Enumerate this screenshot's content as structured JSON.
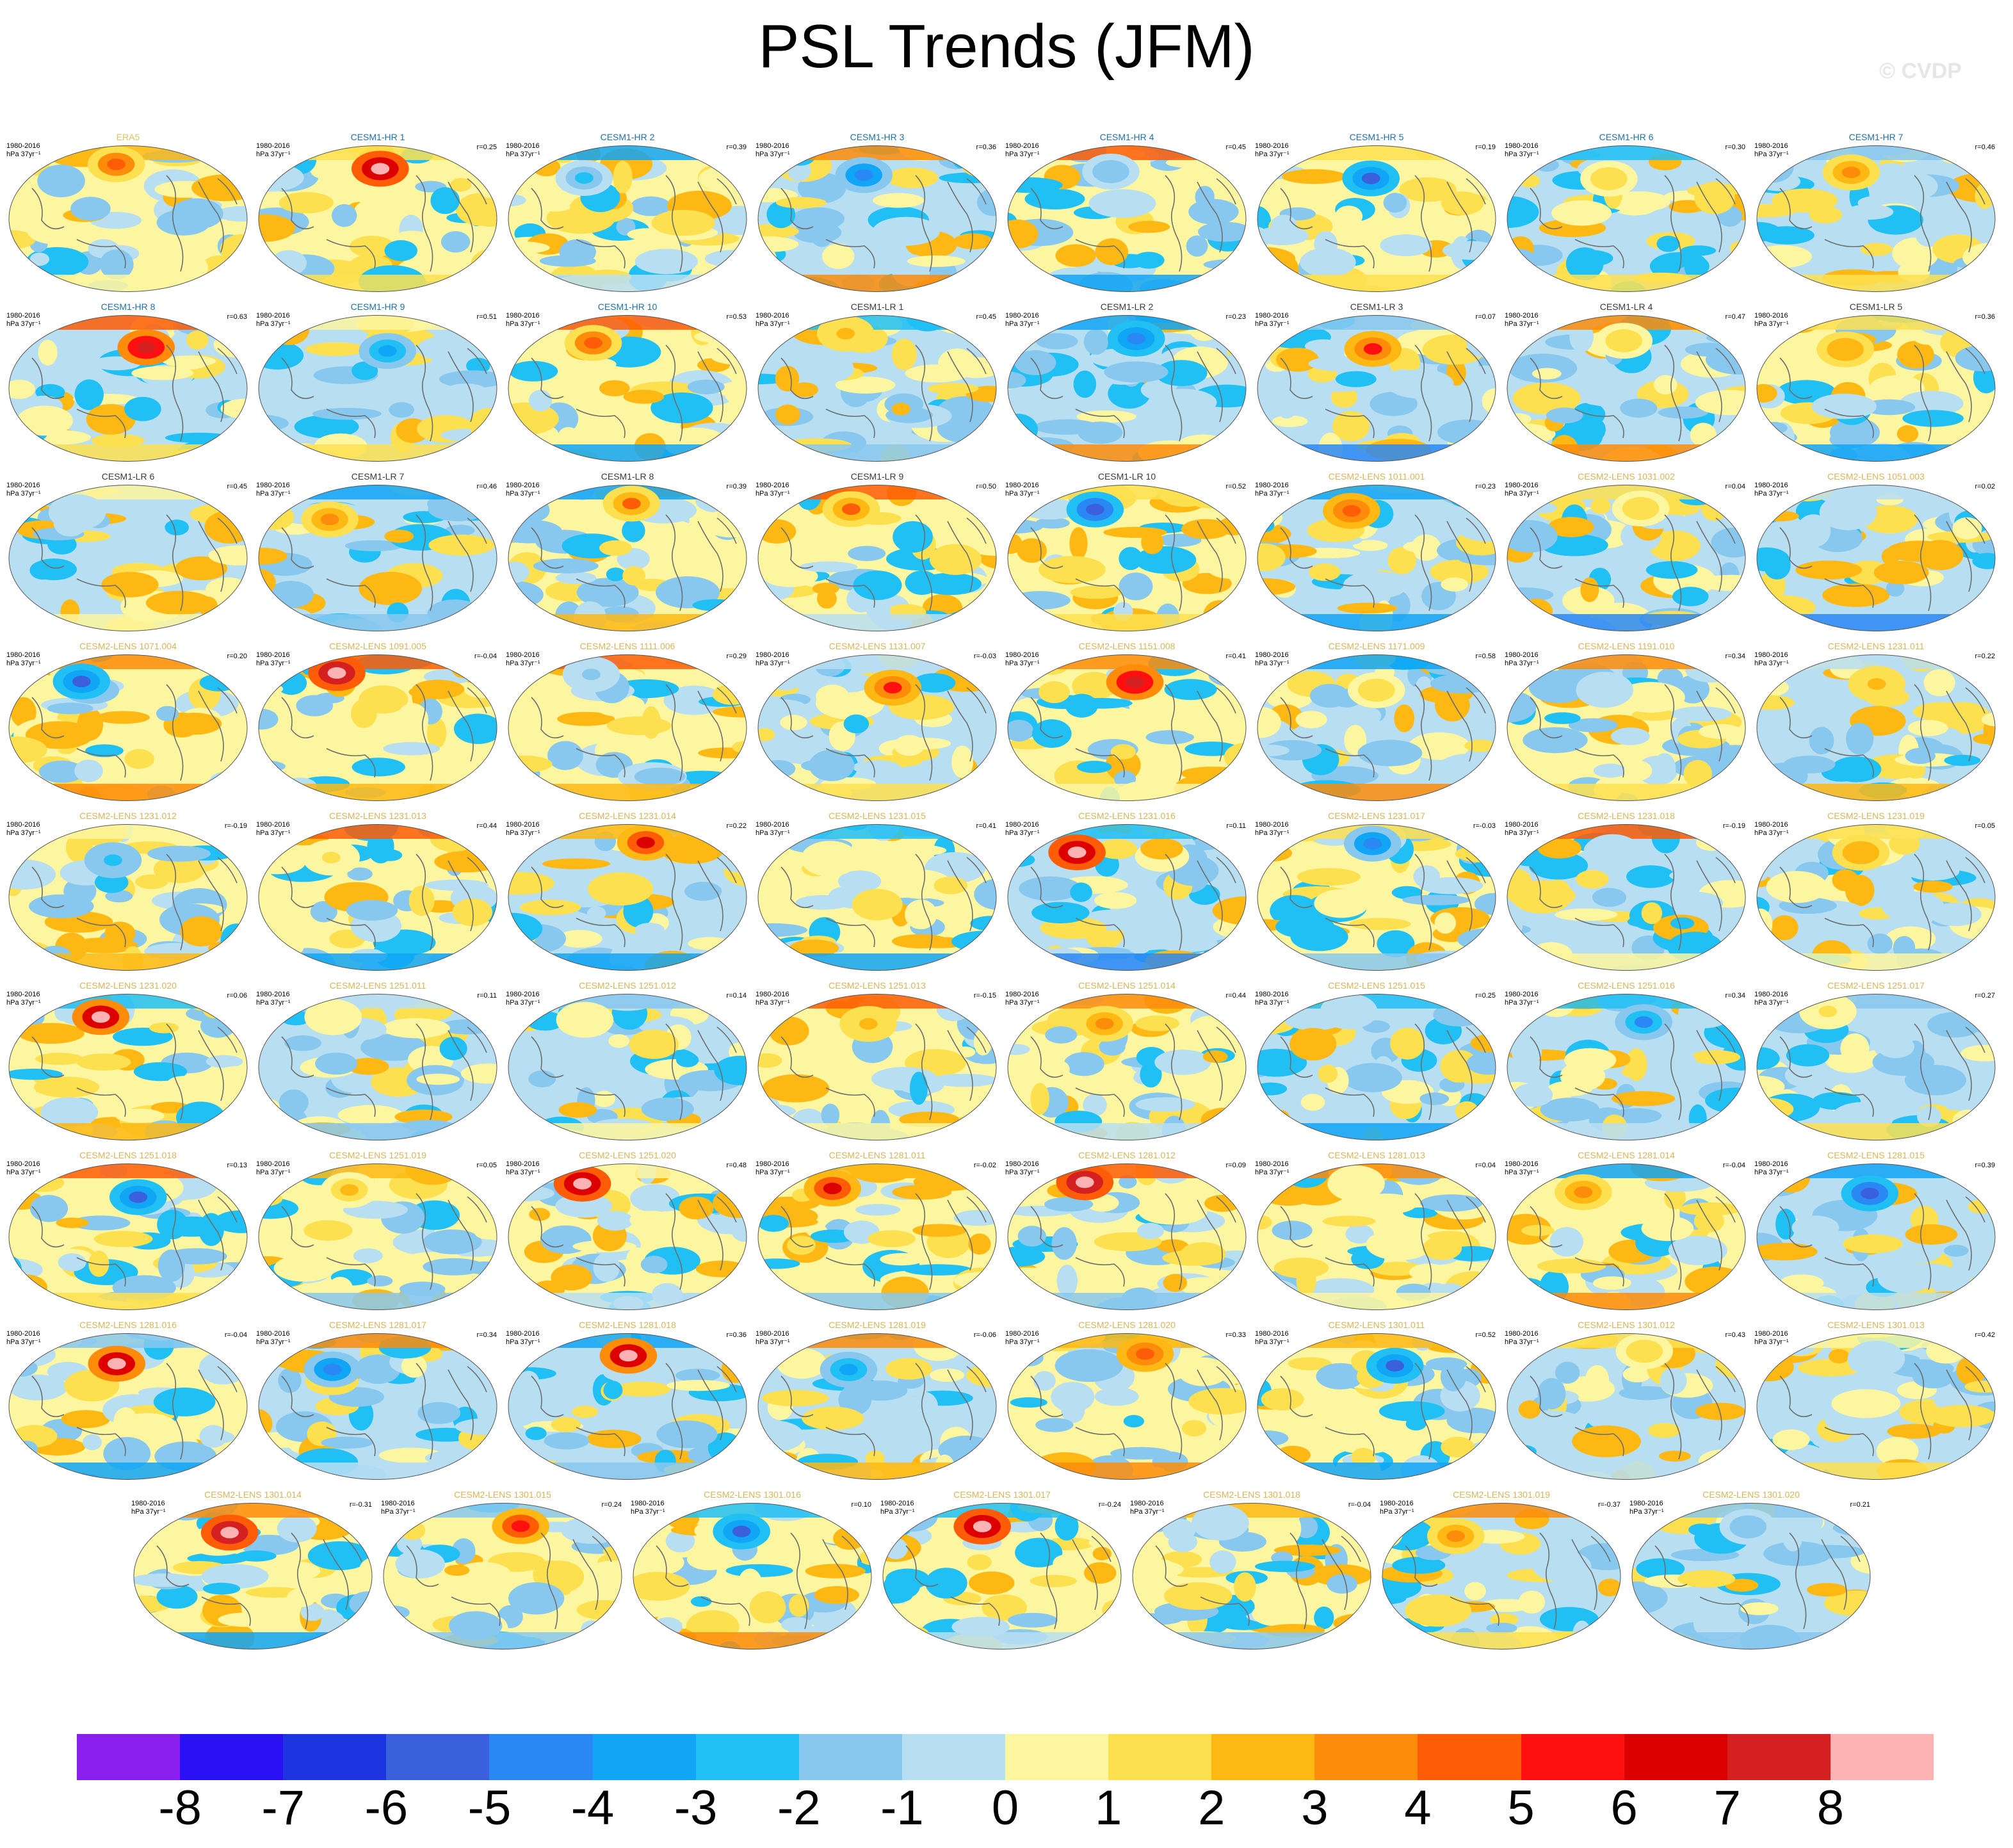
{
  "title": "PSL Trends (JFM)",
  "watermark": "© CVDP",
  "colors": {
    "hr_title": "#1f6fa8",
    "lr_title": "#3a3a3a",
    "lens_title": "#d8b45a",
    "obs_title": "#e0c060"
  },
  "chart_data": {
    "type": "heatmap",
    "title": "PSL Trends (JFM)",
    "projection": "Robinson world map",
    "period": "1980-2016",
    "units": "hPa 37yr⁻¹",
    "colorbar": {
      "levels": [
        -8,
        -7,
        -6,
        -5,
        -4,
        -3,
        -2,
        -1,
        0,
        1,
        2,
        3,
        4,
        5,
        6,
        7,
        8
      ],
      "tick_labels": [
        "-8",
        "-7",
        "-6",
        "-5",
        "-4",
        "-3",
        "-2",
        "-1",
        "0",
        "1",
        "2",
        "3",
        "4",
        "5",
        "6",
        "7",
        "8"
      ],
      "colors": [
        "#8a20f0",
        "#2a10f5",
        "#1d35e0",
        "#3a60dd",
        "#2a88f5",
        "#10a5f5",
        "#20c0f5",
        "#88c8ee",
        "#b8def2",
        "#fdf6a0",
        "#fde050",
        "#fdb814",
        "#fd8c0a",
        "#fe5c06",
        "#fe1010",
        "#dd0000",
        "#d42020",
        "#fdb3b3"
      ]
    },
    "panels": [
      {
        "name": "ERA5",
        "group": "obs",
        "period": "1980-2016",
        "units": "hPa 37yr⁻¹",
        "r": ""
      },
      {
        "name": "CESM1-HR 1",
        "group": "hr",
        "period": "1980-2016",
        "units": "hPa 37yr⁻¹",
        "r": "r=0.25"
      },
      {
        "name": "CESM1-HR 2",
        "group": "hr",
        "period": "1980-2016",
        "units": "hPa 37yr⁻¹",
        "r": "r=0.39"
      },
      {
        "name": "CESM1-HR 3",
        "group": "hr",
        "period": "1980-2016",
        "units": "hPa 37yr⁻¹",
        "r": "r=0.36"
      },
      {
        "name": "CESM1-HR 4",
        "group": "hr",
        "period": "1980-2016",
        "units": "hPa 37yr⁻¹",
        "r": "r=0.45"
      },
      {
        "name": "CESM1-HR 5",
        "group": "hr",
        "period": "1980-2016",
        "units": "hPa 37yr⁻¹",
        "r": "r=0.19"
      },
      {
        "name": "CESM1-HR 6",
        "group": "hr",
        "period": "1980-2016",
        "units": "hPa 37yr⁻¹",
        "r": "r=0.30"
      },
      {
        "name": "CESM1-HR 7",
        "group": "hr",
        "period": "1980-2016",
        "units": "hPa 37yr⁻¹",
        "r": "r=0.46"
      },
      {
        "name": "CESM1-HR 8",
        "group": "hr",
        "period": "1980-2016",
        "units": "hPa 37yr⁻¹",
        "r": "r=0.63"
      },
      {
        "name": "CESM1-HR 9",
        "group": "hr",
        "period": "1980-2016",
        "units": "hPa 37yr⁻¹",
        "r": "r=0.51"
      },
      {
        "name": "CESM1-HR 10",
        "group": "hr",
        "period": "1980-2016",
        "units": "hPa 37yr⁻¹",
        "r": "r=0.53"
      },
      {
        "name": "CESM1-LR 1",
        "group": "lr",
        "period": "1980-2016",
        "units": "hPa 37yr⁻¹",
        "r": "r=0.45"
      },
      {
        "name": "CESM1-LR 2",
        "group": "lr",
        "period": "1980-2016",
        "units": "hPa 37yr⁻¹",
        "r": "r=0.23"
      },
      {
        "name": "CESM1-LR 3",
        "group": "lr",
        "period": "1980-2016",
        "units": "hPa 37yr⁻¹",
        "r": "r=0.07"
      },
      {
        "name": "CESM1-LR 4",
        "group": "lr",
        "period": "1980-2016",
        "units": "hPa 37yr⁻¹",
        "r": "r=0.47"
      },
      {
        "name": "CESM1-LR 5",
        "group": "lr",
        "period": "1980-2016",
        "units": "hPa 37yr⁻¹",
        "r": "r=0.36"
      },
      {
        "name": "CESM1-LR 6",
        "group": "lr",
        "period": "1980-2016",
        "units": "hPa 37yr⁻¹",
        "r": "r=0.45"
      },
      {
        "name": "CESM1-LR 7",
        "group": "lr",
        "period": "1980-2016",
        "units": "hPa 37yr⁻¹",
        "r": "r=0.46"
      },
      {
        "name": "CESM1-LR 8",
        "group": "lr",
        "period": "1980-2016",
        "units": "hPa 37yr⁻¹",
        "r": "r=0.39"
      },
      {
        "name": "CESM1-LR 9",
        "group": "lr",
        "period": "1980-2016",
        "units": "hPa 37yr⁻¹",
        "r": "r=0.50"
      },
      {
        "name": "CESM1-LR 10",
        "group": "lr",
        "period": "1980-2016",
        "units": "hPa 37yr⁻¹",
        "r": "r=0.52"
      },
      {
        "name": "CESM2-LENS 1011.001",
        "group": "lens",
        "period": "1980-2016",
        "units": "hPa 37yr⁻¹",
        "r": "r=0.23"
      },
      {
        "name": "CESM2-LENS 1031.002",
        "group": "lens",
        "period": "1980-2016",
        "units": "hPa 37yr⁻¹",
        "r": "r=0.04"
      },
      {
        "name": "CESM2-LENS 1051.003",
        "group": "lens",
        "period": "1980-2016",
        "units": "hPa 37yr⁻¹",
        "r": "r=0.02"
      },
      {
        "name": "CESM2-LENS 1071.004",
        "group": "lens",
        "period": "1980-2016",
        "units": "hPa 37yr⁻¹",
        "r": "r=0.20"
      },
      {
        "name": "CESM2-LENS 1091.005",
        "group": "lens",
        "period": "1980-2016",
        "units": "hPa 37yr⁻¹",
        "r": "r=-0.04"
      },
      {
        "name": "CESM2-LENS 1111.006",
        "group": "lens",
        "period": "1980-2016",
        "units": "hPa 37yr⁻¹",
        "r": "r=0.29"
      },
      {
        "name": "CESM2-LENS 1131.007",
        "group": "lens",
        "period": "1980-2016",
        "units": "hPa 37yr⁻¹",
        "r": "r=-0.03"
      },
      {
        "name": "CESM2-LENS 1151.008",
        "group": "lens",
        "period": "1980-2016",
        "units": "hPa 37yr⁻¹",
        "r": "r=0.41"
      },
      {
        "name": "CESM2-LENS 1171.009",
        "group": "lens",
        "period": "1980-2016",
        "units": "hPa 37yr⁻¹",
        "r": "r=0.58"
      },
      {
        "name": "CESM2-LENS 1191.010",
        "group": "lens",
        "period": "1980-2016",
        "units": "hPa 37yr⁻¹",
        "r": "r=0.34"
      },
      {
        "name": "CESM2-LENS 1231.011",
        "group": "lens",
        "period": "1980-2016",
        "units": "hPa 37yr⁻¹",
        "r": "r=0.22"
      },
      {
        "name": "CESM2-LENS 1231.012",
        "group": "lens",
        "period": "1980-2016",
        "units": "hPa 37yr⁻¹",
        "r": "r=-0.19"
      },
      {
        "name": "CESM2-LENS 1231.013",
        "group": "lens",
        "period": "1980-2016",
        "units": "hPa 37yr⁻¹",
        "r": "r=0.44"
      },
      {
        "name": "CESM2-LENS 1231.014",
        "group": "lens",
        "period": "1980-2016",
        "units": "hPa 37yr⁻¹",
        "r": "r=0.22"
      },
      {
        "name": "CESM2-LENS 1231.015",
        "group": "lens",
        "period": "1980-2016",
        "units": "hPa 37yr⁻¹",
        "r": "r=0.41"
      },
      {
        "name": "CESM2-LENS 1231.016",
        "group": "lens",
        "period": "1980-2016",
        "units": "hPa 37yr⁻¹",
        "r": "r=0.11"
      },
      {
        "name": "CESM2-LENS 1231.017",
        "group": "lens",
        "period": "1980-2016",
        "units": "hPa 37yr⁻¹",
        "r": "r=-0.03"
      },
      {
        "name": "CESM2-LENS 1231.018",
        "group": "lens",
        "period": "1980-2016",
        "units": "hPa 37yr⁻¹",
        "r": "r=-0.19"
      },
      {
        "name": "CESM2-LENS 1231.019",
        "group": "lens",
        "period": "1980-2016",
        "units": "hPa 37yr⁻¹",
        "r": "r=0.05"
      },
      {
        "name": "CESM2-LENS 1231.020",
        "group": "lens",
        "period": "1980-2016",
        "units": "hPa 37yr⁻¹",
        "r": "r=0.06"
      },
      {
        "name": "CESM2-LENS 1251.011",
        "group": "lens",
        "period": "1980-2016",
        "units": "hPa 37yr⁻¹",
        "r": "r=0.11"
      },
      {
        "name": "CESM2-LENS 1251.012",
        "group": "lens",
        "period": "1980-2016",
        "units": "hPa 37yr⁻¹",
        "r": "r=0.14"
      },
      {
        "name": "CESM2-LENS 1251.013",
        "group": "lens",
        "period": "1980-2016",
        "units": "hPa 37yr⁻¹",
        "r": "r=-0.15"
      },
      {
        "name": "CESM2-LENS 1251.014",
        "group": "lens",
        "period": "1980-2016",
        "units": "hPa 37yr⁻¹",
        "r": "r=0.44"
      },
      {
        "name": "CESM2-LENS 1251.015",
        "group": "lens",
        "period": "1980-2016",
        "units": "hPa 37yr⁻¹",
        "r": "r=0.25"
      },
      {
        "name": "CESM2-LENS 1251.016",
        "group": "lens",
        "period": "1980-2016",
        "units": "hPa 37yr⁻¹",
        "r": "r=0.34"
      },
      {
        "name": "CESM2-LENS 1251.017",
        "group": "lens",
        "period": "1980-2016",
        "units": "hPa 37yr⁻¹",
        "r": "r=0.27"
      },
      {
        "name": "CESM2-LENS 1251.018",
        "group": "lens",
        "period": "1980-2016",
        "units": "hPa 37yr⁻¹",
        "r": "r=0.13"
      },
      {
        "name": "CESM2-LENS 1251.019",
        "group": "lens",
        "period": "1980-2016",
        "units": "hPa 37yr⁻¹",
        "r": "r=0.05"
      },
      {
        "name": "CESM2-LENS 1251.020",
        "group": "lens",
        "period": "1980-2016",
        "units": "hPa 37yr⁻¹",
        "r": "r=0.48"
      },
      {
        "name": "CESM2-LENS 1281.011",
        "group": "lens",
        "period": "1980-2016",
        "units": "hPa 37yr⁻¹",
        "r": "r=-0.02"
      },
      {
        "name": "CESM2-LENS 1281.012",
        "group": "lens",
        "period": "1980-2016",
        "units": "hPa 37yr⁻¹",
        "r": "r=0.09"
      },
      {
        "name": "CESM2-LENS 1281.013",
        "group": "lens",
        "period": "1980-2016",
        "units": "hPa 37yr⁻¹",
        "r": "r=0.04"
      },
      {
        "name": "CESM2-LENS 1281.014",
        "group": "lens",
        "period": "1980-2016",
        "units": "hPa 37yr⁻¹",
        "r": "r=-0.04"
      },
      {
        "name": "CESM2-LENS 1281.015",
        "group": "lens",
        "period": "1980-2016",
        "units": "hPa 37yr⁻¹",
        "r": "r=0.39"
      },
      {
        "name": "CESM2-LENS 1281.016",
        "group": "lens",
        "period": "1980-2016",
        "units": "hPa 37yr⁻¹",
        "r": "r=-0.04"
      },
      {
        "name": "CESM2-LENS 1281.017",
        "group": "lens",
        "period": "1980-2016",
        "units": "hPa 37yr⁻¹",
        "r": "r=0.34"
      },
      {
        "name": "CESM2-LENS 1281.018",
        "group": "lens",
        "period": "1980-2016",
        "units": "hPa 37yr⁻¹",
        "r": "r=0.36"
      },
      {
        "name": "CESM2-LENS 1281.019",
        "group": "lens",
        "period": "1980-2016",
        "units": "hPa 37yr⁻¹",
        "r": "r=-0.06"
      },
      {
        "name": "CESM2-LENS 1281.020",
        "group": "lens",
        "period": "1980-2016",
        "units": "hPa 37yr⁻¹",
        "r": "r=0.33"
      },
      {
        "name": "CESM2-LENS 1301.011",
        "group": "lens",
        "period": "1980-2016",
        "units": "hPa 37yr⁻¹",
        "r": "r=0.52"
      },
      {
        "name": "CESM2-LENS 1301.012",
        "group": "lens",
        "period": "1980-2016",
        "units": "hPa 37yr⁻¹",
        "r": "r=0.43"
      },
      {
        "name": "CESM2-LENS 1301.013",
        "group": "lens",
        "period": "1980-2016",
        "units": "hPa 37yr⁻¹",
        "r": "r=0.42"
      },
      {
        "name": "CESM2-LENS 1301.014",
        "group": "lens",
        "period": "1980-2016",
        "units": "hPa 37yr⁻¹",
        "r": "r=-0.31"
      },
      {
        "name": "CESM2-LENS 1301.015",
        "group": "lens",
        "period": "1980-2016",
        "units": "hPa 37yr⁻¹",
        "r": "r=0.24"
      },
      {
        "name": "CESM2-LENS 1301.016",
        "group": "lens",
        "period": "1980-2016",
        "units": "hPa 37yr⁻¹",
        "r": "r=0.10"
      },
      {
        "name": "CESM2-LENS 1301.017",
        "group": "lens",
        "period": "1980-2016",
        "units": "hPa 37yr⁻¹",
        "r": "r=-0.24"
      },
      {
        "name": "CESM2-LENS 1301.018",
        "group": "lens",
        "period": "1980-2016",
        "units": "hPa 37yr⁻¹",
        "r": "r=-0.04"
      },
      {
        "name": "CESM2-LENS 1301.019",
        "group": "lens",
        "period": "1980-2016",
        "units": "hPa 37yr⁻¹",
        "r": "r=-0.37"
      },
      {
        "name": "CESM2-LENS 1301.020",
        "group": "lens",
        "period": "1980-2016",
        "units": "hPa 37yr⁻¹",
        "r": "r=0.21"
      }
    ]
  }
}
